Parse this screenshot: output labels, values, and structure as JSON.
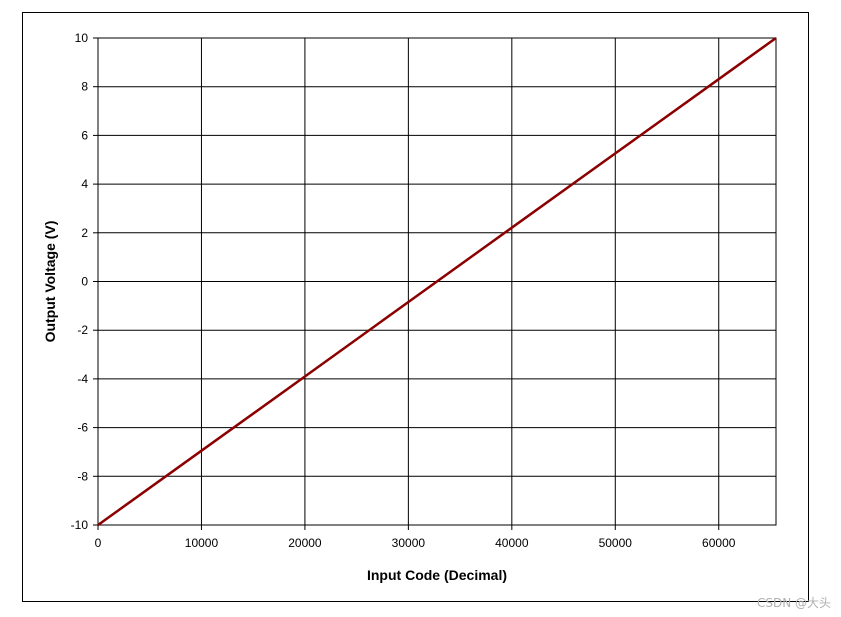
{
  "chart_data": {
    "type": "line",
    "title": "",
    "xlabel": "Input Code (Decimal)",
    "ylabel": "Output Voltage (V)",
    "xlim": [
      0,
      65535
    ],
    "ylim": [
      -10,
      10
    ],
    "x_ticks": [
      "0",
      "10000",
      "20000",
      "30000",
      "40000",
      "50000",
      "60000"
    ],
    "x_tick_values": [
      0,
      10000,
      20000,
      30000,
      40000,
      50000,
      60000
    ],
    "y_ticks": [
      "10",
      "8",
      "6",
      "4",
      "2",
      "0",
      "-2",
      "-4",
      "-6",
      "-8",
      "-10"
    ],
    "y_tick_values": [
      10,
      8,
      6,
      4,
      2,
      0,
      -2,
      -4,
      -6,
      -8,
      -10
    ],
    "grid": true,
    "legend": "none",
    "series": [
      {
        "color": "#8b0000",
        "x": [
          0,
          10000,
          20000,
          30000,
          40000,
          50000,
          60000,
          65535
        ],
        "y": [
          -10,
          -6.95,
          -3.9,
          -0.84,
          2.21,
          5.26,
          8.31,
          10
        ]
      }
    ]
  },
  "watermark": "CSDN @大头"
}
